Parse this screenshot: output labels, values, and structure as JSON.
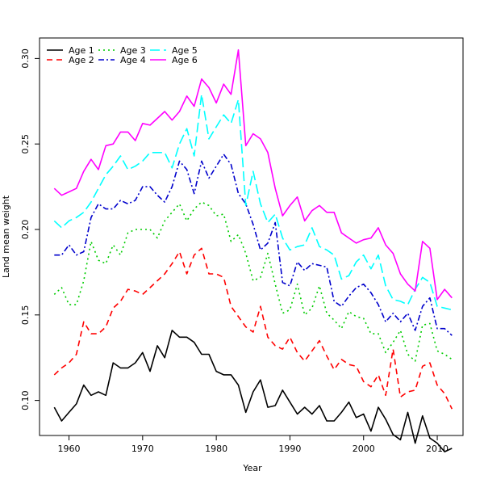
{
  "chart_data": {
    "type": "line",
    "title": "",
    "xlabel": "Year",
    "ylabel": "Land mean weight",
    "xlim": [
      1956,
      2013.5
    ],
    "ylim": [
      0.0795,
      0.312
    ],
    "xticks": [
      1960,
      1970,
      1980,
      1990,
      2000,
      2010
    ],
    "yticks": [
      0.1,
      0.15,
      0.2,
      0.25,
      0.3
    ],
    "ytick_labels": [
      "0.10",
      "0.15",
      "0.20",
      "0.25",
      "0.30"
    ],
    "legend_placement": "top-left",
    "grid": false,
    "x": [
      1958,
      1959,
      1960,
      1961,
      1962,
      1963,
      1964,
      1965,
      1966,
      1967,
      1968,
      1969,
      1970,
      1971,
      1972,
      1973,
      1974,
      1975,
      1976,
      1977,
      1978,
      1979,
      1980,
      1981,
      1982,
      1983,
      1984,
      1985,
      1986,
      1987,
      1988,
      1989,
      1990,
      1991,
      1992,
      1993,
      1994,
      1995,
      1996,
      1997,
      1998,
      1999,
      2000,
      2001,
      2002,
      2003,
      2004,
      2005,
      2006,
      2007,
      2008,
      2009,
      2010,
      2011,
      2012
    ],
    "series": [
      {
        "name": "Age 1",
        "color": "#000000",
        "dash": "solid",
        "values": [
          0.096,
          0.088,
          0.093,
          0.098,
          0.109,
          0.103,
          0.105,
          0.103,
          0.122,
          0.119,
          0.119,
          0.122,
          0.128,
          0.117,
          0.132,
          0.125,
          0.141,
          0.137,
          0.137,
          0.134,
          0.127,
          0.127,
          0.117,
          0.115,
          0.115,
          0.109,
          0.093,
          0.105,
          0.112,
          0.096,
          0.097,
          0.106,
          0.099,
          0.092,
          0.096,
          0.092,
          0.097,
          0.088,
          0.088,
          0.093,
          0.099,
          0.09,
          0.092,
          0.082,
          0.096,
          0.089,
          0.08,
          0.077,
          0.093,
          0.075,
          0.091,
          0.078,
          0.075,
          0.07,
          0.072
        ]
      },
      {
        "name": "Age 2",
        "color": "#ff0000",
        "dash": "long",
        "values": [
          0.115,
          0.119,
          0.122,
          0.127,
          0.146,
          0.139,
          0.139,
          0.143,
          0.154,
          0.158,
          0.165,
          0.164,
          0.162,
          0.166,
          0.17,
          0.174,
          0.18,
          0.187,
          0.174,
          0.185,
          0.189,
          0.174,
          0.174,
          0.172,
          0.155,
          0.149,
          0.143,
          0.14,
          0.155,
          0.137,
          0.132,
          0.13,
          0.137,
          0.128,
          0.123,
          0.129,
          0.135,
          0.126,
          0.118,
          0.124,
          0.121,
          0.12,
          0.111,
          0.108,
          0.115,
          0.103,
          0.13,
          0.102,
          0.105,
          0.106,
          0.12,
          0.122,
          0.109,
          0.104,
          0.095
        ]
      },
      {
        "name": "Age 3",
        "color": "#00cc00",
        "dash": "dot",
        "values": [
          0.162,
          0.166,
          0.156,
          0.156,
          0.17,
          0.193,
          0.182,
          0.18,
          0.191,
          0.185,
          0.198,
          0.2,
          0.2,
          0.2,
          0.195,
          0.205,
          0.21,
          0.215,
          0.205,
          0.212,
          0.216,
          0.214,
          0.208,
          0.209,
          0.193,
          0.197,
          0.186,
          0.17,
          0.172,
          0.186,
          0.168,
          0.151,
          0.153,
          0.168,
          0.15,
          0.154,
          0.167,
          0.151,
          0.147,
          0.142,
          0.152,
          0.149,
          0.148,
          0.139,
          0.139,
          0.128,
          0.134,
          0.141,
          0.127,
          0.123,
          0.144,
          0.145,
          0.129,
          0.127,
          0.124
        ]
      },
      {
        "name": "Age 4",
        "color": "#0000cc",
        "dash": "dashdot",
        "values": [
          0.185,
          0.185,
          0.191,
          0.185,
          0.187,
          0.207,
          0.215,
          0.212,
          0.212,
          0.217,
          0.215,
          0.217,
          0.225,
          0.225,
          0.22,
          0.216,
          0.225,
          0.24,
          0.235,
          0.221,
          0.24,
          0.23,
          0.237,
          0.244,
          0.238,
          0.221,
          0.215,
          0.203,
          0.188,
          0.192,
          0.204,
          0.169,
          0.167,
          0.181,
          0.176,
          0.18,
          0.179,
          0.178,
          0.158,
          0.155,
          0.161,
          0.166,
          0.168,
          0.163,
          0.156,
          0.146,
          0.151,
          0.146,
          0.151,
          0.141,
          0.155,
          0.16,
          0.142,
          0.142,
          0.138
        ]
      },
      {
        "name": "Age 5",
        "color": "#00ffff",
        "dash": "longdash",
        "values": [
          0.205,
          0.201,
          0.205,
          0.207,
          0.21,
          0.216,
          0.224,
          0.232,
          0.237,
          0.243,
          0.235,
          0.237,
          0.24,
          0.245,
          0.245,
          0.245,
          0.236,
          0.25,
          0.259,
          0.243,
          0.279,
          0.253,
          0.26,
          0.267,
          0.262,
          0.276,
          0.214,
          0.234,
          0.215,
          0.204,
          0.209,
          0.195,
          0.188,
          0.19,
          0.191,
          0.201,
          0.19,
          0.188,
          0.185,
          0.171,
          0.173,
          0.181,
          0.185,
          0.177,
          0.185,
          0.167,
          0.159,
          0.158,
          0.156,
          0.165,
          0.172,
          0.169,
          0.155,
          0.154,
          0.153
        ]
      },
      {
        "name": "Age 6",
        "color": "#ff00ff",
        "dash": "solid",
        "values": [
          0.224,
          0.22,
          0.222,
          0.224,
          0.234,
          0.241,
          0.235,
          0.249,
          0.25,
          0.257,
          0.257,
          0.252,
          0.262,
          0.261,
          0.265,
          0.269,
          0.264,
          0.269,
          0.278,
          0.272,
          0.288,
          0.283,
          0.274,
          0.285,
          0.279,
          0.305,
          0.249,
          0.256,
          0.253,
          0.245,
          0.224,
          0.208,
          0.214,
          0.219,
          0.205,
          0.211,
          0.214,
          0.21,
          0.21,
          0.198,
          0.195,
          0.192,
          0.194,
          0.195,
          0.201,
          0.191,
          0.186,
          0.174,
          0.168,
          0.164,
          0.193,
          0.189,
          0.159,
          0.165,
          0.16
        ]
      }
    ]
  }
}
